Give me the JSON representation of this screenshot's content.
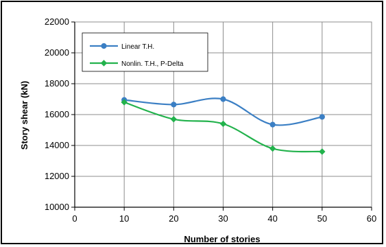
{
  "chart_data": {
    "type": "line",
    "title": "",
    "xlabel": "Number of stories",
    "ylabel": "Story shear (kN)",
    "xlim": [
      0,
      60
    ],
    "ylim": [
      10000,
      22000
    ],
    "xticks": [
      "0",
      "10",
      "20",
      "30",
      "40",
      "50",
      "60"
    ],
    "yticks": [
      "10000",
      "12000",
      "14000",
      "16000",
      "18000",
      "20000",
      "22000"
    ],
    "grid": true,
    "legend_position": "top-left",
    "series": [
      {
        "name": "Linear T.H.",
        "color": "#3b7fc4",
        "marker": "circle",
        "x": [
          10,
          20,
          30,
          40,
          50
        ],
        "y": [
          16950,
          16650,
          17000,
          15350,
          15850
        ]
      },
      {
        "name": "Nonlin. T.H., P-Delta",
        "color": "#22b24c",
        "marker": "diamond",
        "x": [
          10,
          20,
          30,
          40,
          50
        ],
        "y": [
          16800,
          15700,
          15400,
          13800,
          13600
        ]
      }
    ]
  }
}
